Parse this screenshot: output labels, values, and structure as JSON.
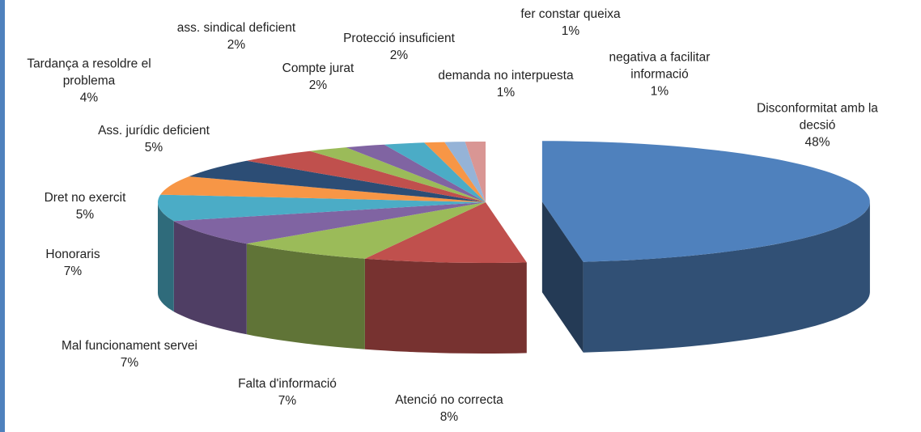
{
  "chart_data": {
    "type": "pie3d",
    "categories": [
      "Disconformitat amb la decsió",
      "Atenció no correcta",
      "Falta d'informació",
      "Mal funcionament servei",
      "Honoraris",
      "Dret no exercit",
      "Ass. jurídic deficient",
      "Tardança  a resoldre el problema",
      "ass. sindical deficient",
      "Compte jurat",
      "Protecció insuficient",
      "demanda no interpuesta",
      "fer constar queixa",
      "negativa a facilitar informació"
    ],
    "values": [
      48,
      8,
      7,
      7,
      7,
      5,
      5,
      4,
      2,
      2,
      2,
      1,
      1,
      1
    ],
    "value_labels": [
      "48%",
      "8%",
      "7%",
      "7%",
      "7%",
      "5%",
      "5%",
      "4%",
      "2%",
      "2%",
      "2%",
      "1%",
      "1%",
      "1%"
    ],
    "colors": [
      "#4F81BD",
      "#C0504D",
      "#9BBB59",
      "#8064A2",
      "#4BACC6",
      "#F79646",
      "#2C4D75",
      "#C0504D",
      "#9BBB59",
      "#8064A2",
      "#4BACC6",
      "#F79646",
      "#95B3D7",
      "#D99694"
    ]
  }
}
